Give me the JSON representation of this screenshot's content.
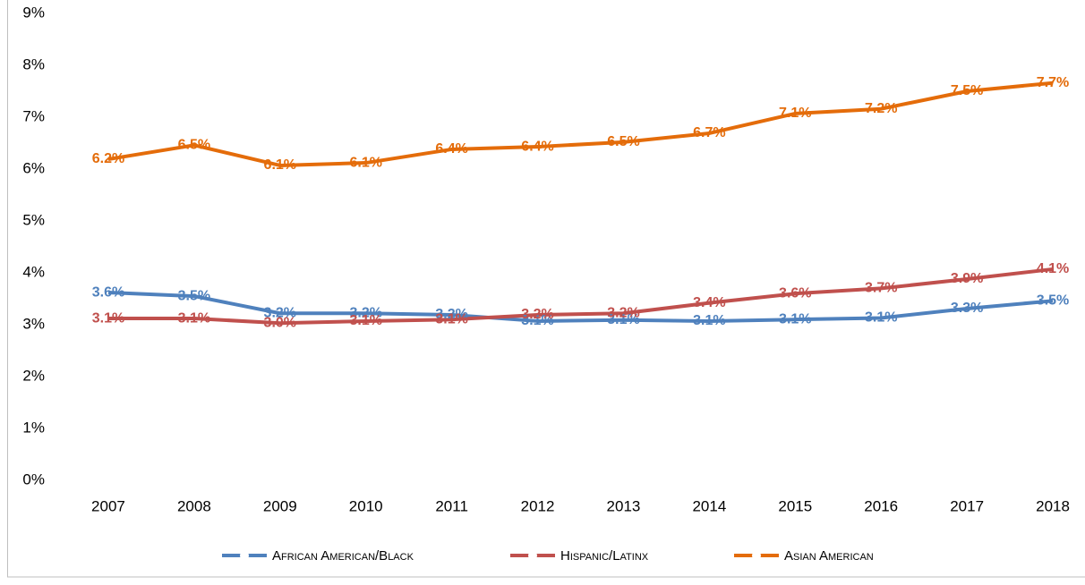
{
  "chart_data": {
    "type": "line",
    "categories": [
      "2007",
      "2008",
      "2009",
      "2010",
      "2011",
      "2012",
      "2013",
      "2014",
      "2015",
      "2016",
      "2017",
      "2018"
    ],
    "series": [
      {
        "name": "African American/Black",
        "color": "#4f81bd",
        "values": [
          3.62,
          3.55,
          3.22,
          3.22,
          3.19,
          3.07,
          3.09,
          3.07,
          3.1,
          3.13,
          3.31,
          3.46
        ],
        "value_labels": [
          "3.6%",
          "3.5%",
          "3.2%",
          "3.2%",
          "3.2%",
          "3.1%",
          "3.1%",
          "3.1%",
          "3.1%",
          "3.1%",
          "3.3%",
          "3.5%"
        ]
      },
      {
        "name": "Hispanic/Latinx",
        "color": "#c0504d",
        "values": [
          3.12,
          3.12,
          3.03,
          3.07,
          3.1,
          3.19,
          3.22,
          3.42,
          3.6,
          3.7,
          3.88,
          4.07
        ],
        "value_labels": [
          "3.1%",
          "3.1%",
          "3.0%",
          "3.1%",
          "3.1%",
          "3.2%",
          "3.2%",
          "3.4%",
          "3.6%",
          "3.7%",
          "3.9%",
          "4.1%"
        ]
      },
      {
        "name": "Asian American",
        "color": "#e46c0a",
        "values": [
          6.19,
          6.46,
          6.07,
          6.12,
          6.38,
          6.43,
          6.52,
          6.69,
          7.07,
          7.16,
          7.5,
          7.66
        ],
        "value_labels": [
          "6.2%",
          "6.5%",
          "6.1%",
          "6.1%",
          "6.4%",
          "6.4%",
          "6.5%",
          "6.7%",
          "7.1%",
          "7.2%",
          "7.5%",
          "7.7%"
        ]
      }
    ],
    "ylim": [
      0,
      9
    ],
    "yticks": [
      {
        "value": 0,
        "label": "0%"
      },
      {
        "value": 1,
        "label": "1%"
      },
      {
        "value": 2,
        "label": "2%"
      },
      {
        "value": 3,
        "label": "3%"
      },
      {
        "value": 4,
        "label": "4%"
      },
      {
        "value": 5,
        "label": "5%"
      },
      {
        "value": 6,
        "label": "6%"
      },
      {
        "value": 7,
        "label": "7%"
      },
      {
        "value": 8,
        "label": "8%"
      },
      {
        "value": 9,
        "label": "9%"
      }
    ],
    "grid": false,
    "legend": "bottom"
  }
}
